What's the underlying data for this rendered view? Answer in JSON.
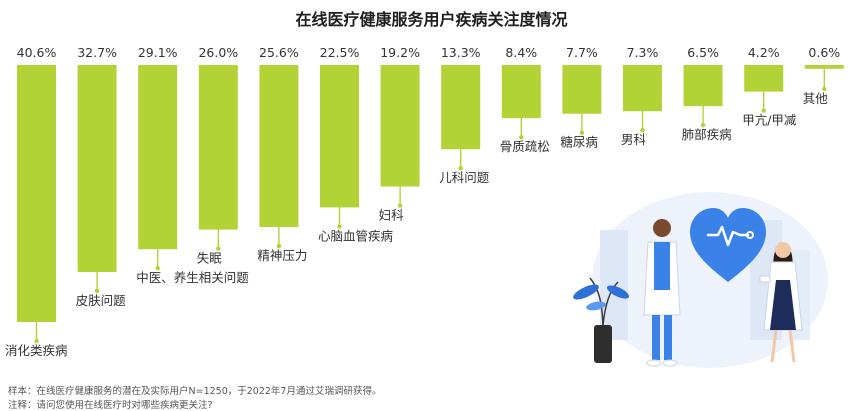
{
  "chart_data": {
    "type": "bar",
    "title": "在线医疗健康服务用户疾病关注度情况",
    "categories": [
      "消化类疾病",
      "皮肤问题",
      "中医、养生相关问题",
      "失眠",
      "精神压力",
      "心脑血管疾病",
      "妇科",
      "儿科问题",
      "骨质疏松",
      "糖尿病",
      "男科",
      "肺部疾病",
      "甲亢/甲减",
      "其他"
    ],
    "values": [
      40.6,
      32.7,
      29.1,
      26.0,
      25.6,
      22.5,
      19.2,
      13.3,
      8.4,
      7.7,
      7.3,
      6.5,
      4.2,
      0.6
    ],
    "value_labels": [
      "40.6%",
      "32.7%",
      "29.1%",
      "26.0%",
      "25.6%",
      "22.5%",
      "19.2%",
      "13.3%",
      "8.4%",
      "7.7%",
      "7.3%",
      "6.5%",
      "4.2%",
      "0.6%"
    ],
    "unit": "%",
    "bar_color": "#b2d235",
    "ylim": [
      0,
      40.6
    ],
    "grid": false,
    "legend": "none"
  },
  "footnotes": {
    "sample": "样本：在线医疗健康服务的潜在及实际用户N=1250，于2022年7月通过艾瑞调研获得。",
    "note": "注释：请问您使用在线医疗时对哪些疾病更关注?"
  },
  "illustration": {
    "heart_color": "#3b82e8",
    "description_icon": "doctors-heart-illustration"
  }
}
